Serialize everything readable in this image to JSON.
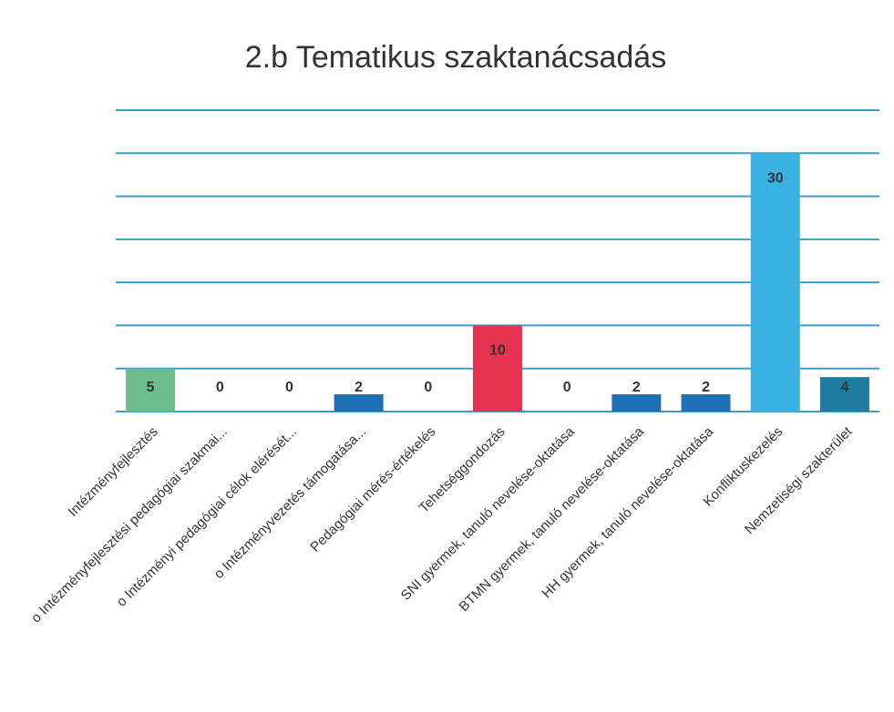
{
  "chart_data": {
    "type": "bar",
    "title": "2.b Tematikus szaktanácsadás",
    "categories": [
      "Intézményfejlesztés",
      "o Intézményfejlesztési pedagógiai szakmai...",
      "o Intézményi pedagógiai célok elérését...",
      "o Intézményvezetés támogatása...",
      "Pedagógiai mérés-értékelés",
      "Tehetséggondozás",
      "SNI gyermek, tanuló nevelése-oktatása",
      "BTMN gyermek, tanuló nevelése-oktatása",
      "HH gyermek, tanuló nevelése-oktatása",
      "Konfliktuskezelés",
      "Nemzetiségi szakterület"
    ],
    "values": [
      5,
      0,
      0,
      2,
      0,
      10,
      0,
      2,
      2,
      30,
      4
    ],
    "colors": [
      "#6cbd8c",
      "#1f6fb5",
      "#1f6fb5",
      "#1f6fb5",
      "#1f6fb5",
      "#e6334f",
      "#1f6fb5",
      "#1f6fb5",
      "#1f6fb5",
      "#3ab2e4",
      "#1e7ca0"
    ],
    "ylim": [
      0,
      35
    ],
    "yticks": [
      0,
      5,
      10,
      15,
      20,
      25,
      30,
      35
    ],
    "grid": true
  }
}
